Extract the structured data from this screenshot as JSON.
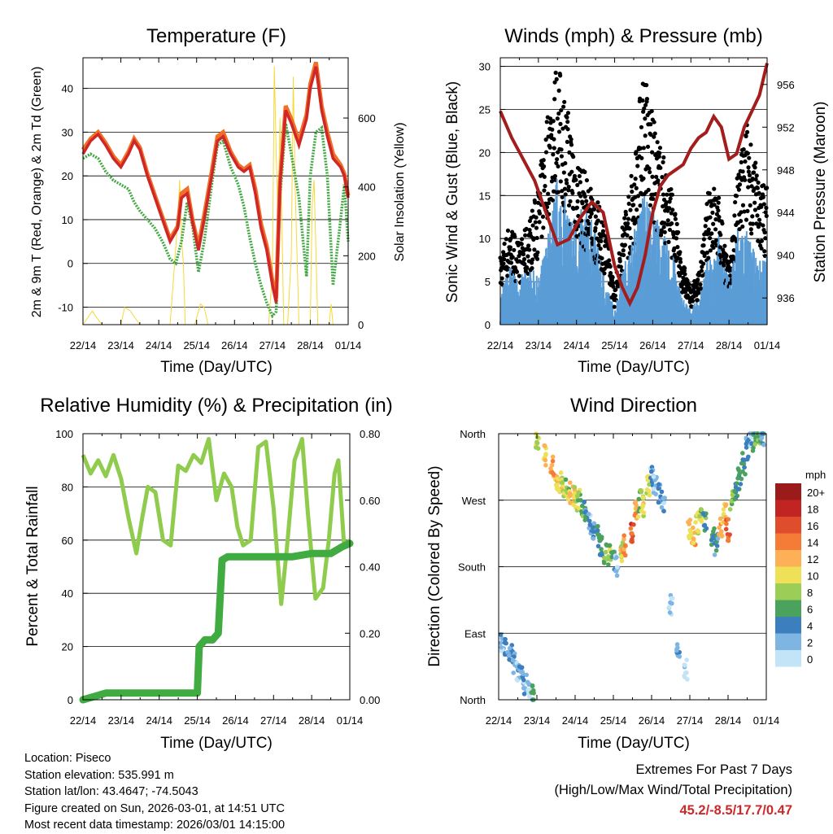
{
  "colors": {
    "temp_red": "#d02626",
    "temp_orange": "#f07028",
    "dewpoint": "#43a843",
    "solar": "#f5d938",
    "wind": "#5b9dd6",
    "gust": "#000000",
    "pressure": "#a31d1d",
    "rh": "#8fcc4e",
    "precip": "#40ab40",
    "extremes": "#cc2a2a"
  },
  "chart_data": [
    {
      "id": "temperature",
      "type": "line",
      "title": "Temperature (F)",
      "xlabel": "Time (Day/UTC)",
      "ylabel": "2m & 9m T (Red, Orange) & 2m Td (Green)",
      "ylabel_right": "Solar Insolation (Yellow)",
      "x_ticks": [
        "22/14",
        "23/14",
        "24/14",
        "25/14",
        "26/14",
        "27/14",
        "28/14",
        "01/14"
      ],
      "x_range_days": [
        0,
        7
      ],
      "ylim": [
        -14,
        47
      ],
      "y_ticks": [
        -10,
        0,
        10,
        20,
        30,
        40
      ],
      "ylim_right": [
        0,
        775
      ],
      "y_ticks_right": [
        0,
        200,
        400,
        600
      ],
      "series": [
        {
          "name": "2m T",
          "color": "temp_red",
          "x": [
            0,
            0.2,
            0.4,
            0.6,
            0.8,
            1.0,
            1.2,
            1.35,
            1.5,
            1.7,
            1.9,
            2.1,
            2.3,
            2.5,
            2.6,
            2.75,
            2.9,
            3.05,
            3.2,
            3.4,
            3.55,
            3.7,
            3.9,
            4.1,
            4.25,
            4.4,
            4.55,
            4.7,
            4.85,
            5.0,
            5.1,
            5.2,
            5.35,
            5.5,
            5.7,
            5.9,
            6.0,
            6.15,
            6.3,
            6.45,
            6.6,
            6.8,
            6.9,
            7.0
          ],
          "values": [
            25,
            28,
            29.5,
            27,
            24,
            22,
            25,
            28,
            26,
            20,
            15,
            10,
            5,
            8,
            15,
            16,
            9,
            3,
            10,
            20,
            28,
            29,
            25,
            22,
            21,
            22,
            16,
            8,
            3,
            -5,
            -9,
            18,
            35,
            32,
            27,
            33,
            40,
            45,
            35,
            29,
            24,
            22,
            20,
            15
          ]
        },
        {
          "name": "9m T",
          "color": "temp_orange",
          "x": [
            0,
            0.2,
            0.4,
            0.6,
            0.8,
            1.0,
            1.2,
            1.35,
            1.5,
            1.7,
            1.9,
            2.1,
            2.3,
            2.5,
            2.6,
            2.75,
            2.9,
            3.05,
            3.2,
            3.4,
            3.55,
            3.7,
            3.9,
            4.1,
            4.25,
            4.4,
            4.55,
            4.7,
            4.85,
            5.0,
            5.1,
            5.2,
            5.35,
            5.5,
            5.7,
            5.9,
            6.0,
            6.15,
            6.3,
            6.45,
            6.6,
            6.8,
            6.9,
            7.0
          ],
          "values": [
            26,
            28.5,
            30,
            27.5,
            24.5,
            22.5,
            25.5,
            28.5,
            26.5,
            20.5,
            15.5,
            10.5,
            5.5,
            8.5,
            16,
            17,
            9.5,
            4,
            11,
            21,
            29,
            30,
            25.5,
            22.5,
            21.5,
            22.5,
            17,
            9,
            4,
            -4,
            -8,
            19,
            36,
            33,
            28,
            34,
            41,
            46,
            36,
            30,
            25,
            22.5,
            20.5,
            15.5
          ]
        },
        {
          "name": "2m Td",
          "color": "dewpoint",
          "x": [
            0,
            0.2,
            0.4,
            0.6,
            0.8,
            1.0,
            1.2,
            1.35,
            1.5,
            1.7,
            1.9,
            2.1,
            2.3,
            2.45,
            2.6,
            2.75,
            2.9,
            3.05,
            3.2,
            3.4,
            3.55,
            3.7,
            3.9,
            4.1,
            4.25,
            4.4,
            4.55,
            4.7,
            4.85,
            5.0,
            5.1,
            5.2,
            5.35,
            5.5,
            5.7,
            5.9,
            6.0,
            6.15,
            6.3,
            6.45,
            6.6,
            6.8,
            6.9,
            7.0
          ],
          "values": [
            24,
            25,
            24,
            21,
            19,
            18,
            17,
            14,
            12,
            10,
            8,
            5,
            1,
            0,
            5,
            14,
            8,
            -2,
            5,
            18,
            27,
            28,
            22,
            18,
            13,
            6,
            0,
            -5,
            -9,
            -12,
            -11,
            15,
            32,
            25,
            15,
            -3,
            20,
            30,
            31,
            20,
            -5,
            10,
            18,
            5
          ]
        },
        {
          "name": "Solar Insolation",
          "color": "solar",
          "axis": "right",
          "x": [
            0,
            0.25,
            0.3,
            0.5,
            0.6,
            0.9,
            1.0,
            1.1,
            1.25,
            1.5,
            1.7,
            2.0,
            2.3,
            2.5,
            2.55,
            2.6,
            2.65,
            2.7,
            2.8,
            2.95,
            3.1,
            3.2,
            3.3,
            3.6,
            3.9,
            4.2,
            4.3,
            4.6,
            4.8,
            4.9,
            5.0,
            5.05,
            5.1,
            5.15,
            5.2,
            5.3,
            5.4,
            5.5,
            5.55,
            5.6,
            5.7,
            5.9,
            6.0,
            6.05,
            6.1,
            6.2,
            6.3,
            6.4,
            6.5,
            6.55,
            6.6,
            6.9,
            7.0
          ],
          "values": [
            0,
            40,
            30,
            0,
            0,
            0,
            0,
            50,
            40,
            0,
            0,
            0,
            0,
            300,
            420,
            250,
            180,
            0,
            0,
            0,
            60,
            50,
            0,
            0,
            0,
            0,
            0,
            0,
            0,
            0,
            150,
            750,
            500,
            300,
            600,
            0,
            0,
            200,
            720,
            400,
            0,
            0,
            0,
            350,
            420,
            0,
            0,
            0,
            0,
            60,
            0,
            0,
            0
          ]
        }
      ]
    },
    {
      "id": "winds",
      "type": "scatter",
      "title": "Winds (mph) & Pressure (mb)",
      "xlabel": "Time (Day/UTC)",
      "ylabel": "Sonic Wind & Gust (Blue, Black)",
      "ylabel_right": "Station Pressure (Maroon)",
      "x_ticks": [
        "22/14",
        "23/14",
        "24/14",
        "25/14",
        "26/14",
        "27/14",
        "28/14",
        "01/14"
      ],
      "x_range_days": [
        0,
        7
      ],
      "ylim": [
        0,
        31
      ],
      "y_ticks": [
        0,
        5,
        10,
        15,
        20,
        25,
        30
      ],
      "ylim_right": [
        933.5,
        958.5
      ],
      "y_ticks_right": [
        936,
        940,
        944,
        948,
        952,
        956
      ],
      "series": [
        {
          "name": "Sonic Wind",
          "color": "wind",
          "x": [
            0,
            0.25,
            0.5,
            0.75,
            1.0,
            1.25,
            1.5,
            1.75,
            2.0,
            2.25,
            2.5,
            2.75,
            3.0,
            3.25,
            3.5,
            3.75,
            4.0,
            4.25,
            4.5,
            4.75,
            5.0,
            5.25,
            5.5,
            5.75,
            6.0,
            6.25,
            6.5,
            6.75,
            7.0
          ],
          "values": [
            2,
            4,
            3,
            4,
            3,
            6,
            10,
            8,
            7,
            8,
            6,
            3,
            1,
            4,
            6,
            9,
            8,
            6,
            5,
            2,
            1,
            2,
            5,
            6,
            3,
            7,
            6,
            4,
            5
          ]
        },
        {
          "name": "Gust",
          "color": "gust",
          "x": [
            0,
            0.25,
            0.5,
            0.75,
            1.0,
            1.25,
            1.5,
            1.75,
            2.0,
            2.25,
            2.5,
            2.75,
            3.0,
            3.25,
            3.5,
            3.75,
            4.0,
            4.25,
            4.5,
            4.75,
            5.0,
            5.25,
            5.5,
            5.75,
            6.0,
            6.25,
            6.5,
            6.75,
            7.0
          ],
          "values": [
            6,
            9,
            7,
            9,
            12,
            19,
            23,
            19,
            15,
            13,
            11,
            9,
            3,
            10,
            14,
            23,
            18,
            15,
            12,
            6,
            3,
            5,
            13,
            11,
            5,
            14,
            18,
            13,
            12
          ]
        },
        {
          "name": "Station Pressure",
          "color": "pressure",
          "axis": "right",
          "x": [
            0,
            0.3,
            0.6,
            0.9,
            1.2,
            1.5,
            1.8,
            2.1,
            2.4,
            2.7,
            3.0,
            3.2,
            3.4,
            3.6,
            3.8,
            4.0,
            4.2,
            4.4,
            4.6,
            4.8,
            5.0,
            5.2,
            5.4,
            5.6,
            5.8,
            6.0,
            6.2,
            6.4,
            6.6,
            6.8,
            7.0
          ],
          "values": [
            953.5,
            951,
            949,
            947,
            944,
            941,
            941.5,
            943.5,
            945,
            944,
            939,
            937,
            935.5,
            937,
            940,
            944,
            946.5,
            947.5,
            948,
            948.5,
            950,
            951,
            951.5,
            953,
            952,
            949,
            949.5,
            952,
            953.5,
            955,
            958
          ]
        }
      ]
    },
    {
      "id": "humidity",
      "type": "line",
      "title": "Relative Humidity (%) & Precipitation (in)",
      "xlabel": "Time (Day/UTC)",
      "ylabel": "Percent & Total Rainfall",
      "x_ticks": [
        "22/14",
        "23/14",
        "24/14",
        "25/14",
        "26/14",
        "27/14",
        "28/14",
        "01/14"
      ],
      "x_range_days": [
        0,
        7
      ],
      "ylim": [
        0,
        100
      ],
      "y_ticks": [
        0,
        20,
        40,
        60,
        80,
        100
      ],
      "ylim_right": [
        0,
        0.8
      ],
      "y_ticks_right": [
        "0.00",
        "0.20",
        "0.40",
        "0.60",
        "0.80"
      ],
      "series": [
        {
          "name": "Relative Humidity",
          "color": "rh",
          "x": [
            0,
            0.2,
            0.4,
            0.6,
            0.8,
            1.0,
            1.2,
            1.4,
            1.55,
            1.7,
            1.9,
            2.1,
            2.3,
            2.5,
            2.7,
            2.9,
            3.1,
            3.3,
            3.5,
            3.7,
            3.9,
            4.05,
            4.2,
            4.4,
            4.6,
            4.8,
            5.0,
            5.2,
            5.35,
            5.55,
            5.75,
            5.9,
            6.1,
            6.3,
            6.45,
            6.6,
            6.7,
            6.85,
            7.0
          ],
          "values": [
            92,
            85,
            90,
            84,
            92,
            83,
            68,
            55,
            68,
            80,
            78,
            60,
            58,
            88,
            86,
            92,
            89,
            98,
            75,
            85,
            80,
            65,
            58,
            60,
            95,
            97,
            72,
            36,
            57,
            90,
            98,
            70,
            38,
            42,
            60,
            85,
            90,
            58,
            60
          ]
        },
        {
          "name": "Total Precipitation",
          "color": "precip",
          "axis": "right",
          "x": [
            0,
            0.3,
            0.6,
            1.0,
            2.0,
            3.0,
            3.05,
            3.2,
            3.4,
            3.55,
            3.65,
            3.8,
            4.0,
            4.5,
            5.0,
            5.5,
            6.0,
            6.5,
            6.8,
            7.0
          ],
          "values": [
            0,
            0.01,
            0.02,
            0.02,
            0.02,
            0.02,
            0.16,
            0.18,
            0.18,
            0.2,
            0.42,
            0.43,
            0.43,
            0.43,
            0.43,
            0.43,
            0.44,
            0.44,
            0.46,
            0.47
          ]
        }
      ]
    },
    {
      "id": "direction",
      "type": "scatter",
      "title": "Wind Direction",
      "xlabel": "Time (Day/UTC)",
      "ylabel": "Direction (Colored By Speed)",
      "x_ticks": [
        "22/14",
        "23/14",
        "24/14",
        "25/14",
        "26/14",
        "27/14",
        "28/14",
        "01/14"
      ],
      "x_range_days": [
        0,
        7
      ],
      "y_ticks": [
        "North",
        "East",
        "South",
        "West",
        "North"
      ],
      "legend_title": "mph",
      "legend_labels": [
        "20+",
        "18",
        "16",
        "14",
        "12",
        "10",
        "8",
        "6",
        "4",
        "2",
        "0"
      ],
      "legend_colors": [
        "#9b1b1b",
        "#c22424",
        "#e04d2d",
        "#f47c36",
        "#fdb055",
        "#eee057",
        "#9ccd57",
        "#4aa25c",
        "#3b7fbf",
        "#7fb5e3",
        "#c3e4f7"
      ],
      "series": [
        {
          "name": "Direction (deg)",
          "x": [
            0.1,
            0.2,
            0.3,
            0.4,
            0.5,
            0.6,
            0.7,
            0.8,
            0.9,
            1.0,
            1.2,
            1.4,
            1.5,
            1.6,
            1.7,
            1.8,
            1.9,
            2.0,
            2.1,
            2.2,
            2.3,
            2.4,
            2.5,
            2.6,
            2.7,
            2.8,
            2.9,
            3.0,
            3.1,
            3.2,
            3.3,
            3.5,
            3.6,
            3.7,
            3.8,
            3.9,
            4.0,
            4.1,
            4.2,
            4.3,
            4.5,
            4.7,
            4.9,
            5.0,
            5.1,
            5.2,
            5.3,
            5.4,
            5.6,
            5.7,
            5.8,
            5.9,
            6.0,
            6.1,
            6.2,
            6.3,
            6.4,
            6.5,
            6.6,
            6.7,
            6.8,
            6.9
          ],
          "values": [
            80,
            70,
            60,
            50,
            40,
            30,
            20,
            10,
            5,
            355,
            330,
            315,
            300,
            295,
            290,
            285,
            280,
            275,
            270,
            260,
            250,
            240,
            230,
            220,
            210,
            200,
            195,
            190,
            180,
            200,
            210,
            225,
            260,
            270,
            260,
            290,
            300,
            290,
            280,
            270,
            130,
            60,
            40,
            230,
            220,
            240,
            250,
            240,
            220,
            210,
            235,
            250,
            230,
            270,
            280,
            300,
            320,
            340,
            355,
            350,
            360,
            355
          ],
          "speeds": [
            2,
            3,
            4,
            3,
            2,
            3,
            2,
            1,
            6,
            9,
            11,
            13,
            12,
            10,
            9,
            8,
            11,
            10,
            8,
            6,
            4,
            2,
            3,
            5,
            6,
            7,
            8,
            4,
            2,
            10,
            14,
            16,
            12,
            8,
            10,
            9,
            2,
            1,
            3,
            2,
            1,
            2,
            1,
            10,
            12,
            9,
            8,
            6,
            5,
            4,
            12,
            10,
            15,
            8,
            6,
            5,
            4,
            3,
            2,
            6,
            7,
            4
          ]
        }
      ]
    }
  ],
  "info": {
    "location": "Location: Piseco",
    "elevation": "Station elevation: 535.991 m",
    "latlon": "Station lat/lon: 43.4647; -74.5043",
    "created": "Figure created on Sun, 2026-03-01, at 14:51 UTC",
    "recent": "Most recent data timestamp: 2026/03/01 14:15:00"
  },
  "extremes": {
    "line1": "Extremes For Past 7 Days",
    "line2": "(High/Low/Max Wind/Total Precipitation)",
    "values": "45.2/-8.5/17.7/0.47"
  }
}
